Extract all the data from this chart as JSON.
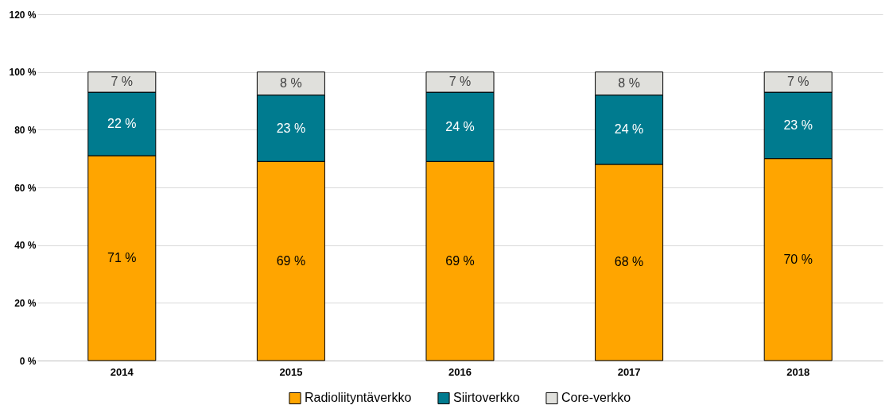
{
  "chart_data": {
    "type": "bar",
    "stacked": true,
    "categories": [
      "2014",
      "2015",
      "2016",
      "2017",
      "2018"
    ],
    "series": [
      {
        "name": "Radioliityntäverkko",
        "color": "#ffa500",
        "values": [
          71,
          69,
          69,
          68,
          70
        ],
        "value_labels": [
          "71 %",
          "69 %",
          "69 %",
          "68 %",
          "70 %"
        ]
      },
      {
        "name": "Siirtoverkko",
        "color": "#007b8f",
        "values": [
          22,
          23,
          24,
          24,
          23
        ],
        "value_labels": [
          "22 %",
          "23 %",
          "24 %",
          "24 %",
          "23 %"
        ]
      },
      {
        "name": "Core-verkko",
        "color": "#e0e0dc",
        "values": [
          7,
          8,
          7,
          8,
          7
        ],
        "value_labels": [
          "7 %",
          "8 %",
          "7 %",
          "8 %",
          "7 %"
        ]
      }
    ],
    "ylim": [
      0,
      120
    ],
    "yticks": [
      {
        "value": 0,
        "label": "0 %"
      },
      {
        "value": 20,
        "label": "20 %"
      },
      {
        "value": 40,
        "label": "40 %"
      },
      {
        "value": 60,
        "label": "60 %"
      },
      {
        "value": 80,
        "label": "80 %"
      },
      {
        "value": 100,
        "label": "100 %"
      },
      {
        "value": 120,
        "label": "120 %"
      }
    ],
    "grid": "y",
    "legend": "bottom"
  }
}
